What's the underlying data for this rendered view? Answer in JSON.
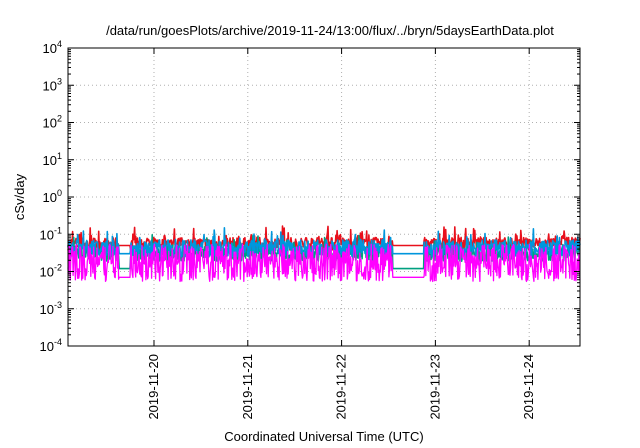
{
  "chart_data": {
    "type": "line",
    "title": "/data/run/goesPlots/archive/2019-11-24/13:00/flux/../bryn/5daysEarthData.plot",
    "xlabel": "Coordinated Universal Time (UTC)",
    "ylabel": "cSv/day",
    "yscale": "log",
    "ylim": [
      0.0001,
      10000
    ],
    "y_ticks": [
      {
        "exp": "-4",
        "value": 0.0001
      },
      {
        "exp": "-3",
        "value": 0.001
      },
      {
        "exp": "-2",
        "value": 0.01
      },
      {
        "exp": "-1",
        "value": 0.1
      },
      {
        "exp": "0",
        "value": 1
      },
      {
        "exp": "1",
        "value": 10
      },
      {
        "exp": "2",
        "value": 100
      },
      {
        "exp": "3",
        "value": 1000
      },
      {
        "exp": "4",
        "value": 10000
      }
    ],
    "xlim": [
      "2019-11-19 02:00",
      "2019-11-24 13:00"
    ],
    "x_ticks": [
      "2019-11-20",
      "2019-11-21",
      "2019-11-22",
      "2019-11-23",
      "2019-11-24"
    ],
    "grid": true,
    "data_gaps": [
      [
        "2019-11-19 15:00",
        "2019-11-19 18:00"
      ],
      [
        "2019-11-22 13:00",
        "2019-11-22 21:00"
      ]
    ],
    "series": [
      {
        "color": "#e8101c",
        "level": 0.055,
        "spread": 0.35,
        "low_level": 0.05
      },
      {
        "color": "#00a080",
        "level": 0.03,
        "spread": 0.4,
        "low_level": 0.012
      },
      {
        "color": "#0096dc",
        "level": 0.042,
        "spread": 0.45,
        "low_level": 0.03
      },
      {
        "color": "#ff00ff",
        "level": 0.012,
        "spread": 0.7,
        "low_level": 0.007
      }
    ]
  }
}
